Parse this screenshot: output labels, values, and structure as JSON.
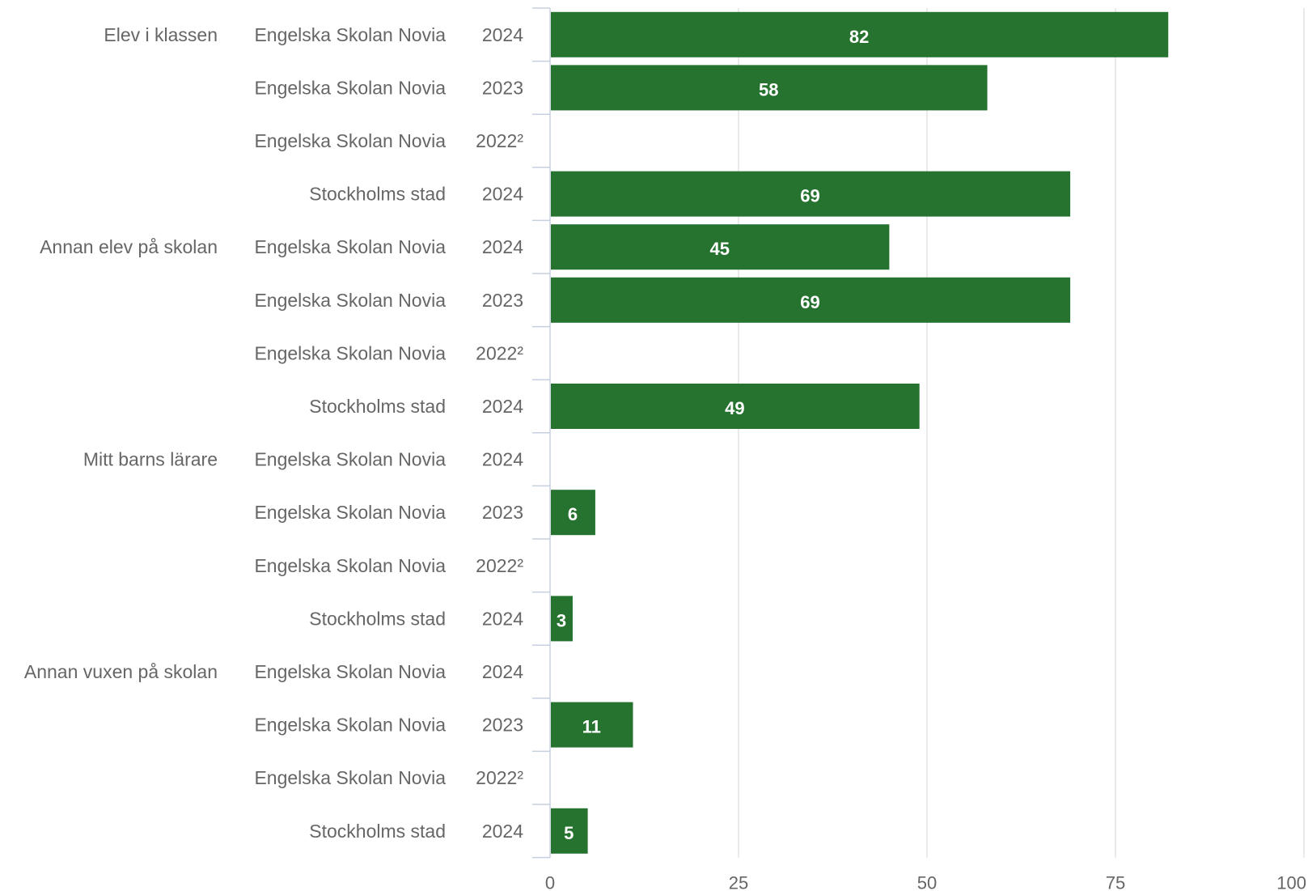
{
  "chart_data": {
    "type": "bar",
    "orientation": "horizontal",
    "color": "#267330",
    "xlim": [
      0,
      100
    ],
    "xticks": [
      0,
      25,
      50,
      75,
      100
    ],
    "grid": true,
    "groups": [
      {
        "name": "Elev i klassen",
        "rows": [
          {
            "org": "Engelska Skolan Novia",
            "year": "2024",
            "value": 82
          },
          {
            "org": "Engelska Skolan Novia",
            "year": "2023",
            "value": 58
          },
          {
            "org": "Engelska Skolan Novia",
            "year": "2022²",
            "value": null
          },
          {
            "org": "Stockholms stad",
            "year": "2024",
            "value": 69
          }
        ]
      },
      {
        "name": "Annan elev på skolan",
        "rows": [
          {
            "org": "Engelska Skolan Novia",
            "year": "2024",
            "value": 45
          },
          {
            "org": "Engelska Skolan Novia",
            "year": "2023",
            "value": 69
          },
          {
            "org": "Engelska Skolan Novia",
            "year": "2022²",
            "value": null
          },
          {
            "org": "Stockholms stad",
            "year": "2024",
            "value": 49
          }
        ]
      },
      {
        "name": "Mitt barns lärare",
        "rows": [
          {
            "org": "Engelska Skolan Novia",
            "year": "2024",
            "value": null
          },
          {
            "org": "Engelska Skolan Novia",
            "year": "2023",
            "value": 6
          },
          {
            "org": "Engelska Skolan Novia",
            "year": "2022²",
            "value": null
          },
          {
            "org": "Stockholms stad",
            "year": "2024",
            "value": 3
          }
        ]
      },
      {
        "name": "Annan vuxen på skolan",
        "rows": [
          {
            "org": "Engelska Skolan Novia",
            "year": "2024",
            "value": null
          },
          {
            "org": "Engelska Skolan Novia",
            "year": "2023",
            "value": 11
          },
          {
            "org": "Engelska Skolan Novia",
            "year": "2022²",
            "value": null
          },
          {
            "org": "Stockholms stad",
            "year": "2024",
            "value": 5
          }
        ]
      }
    ]
  }
}
